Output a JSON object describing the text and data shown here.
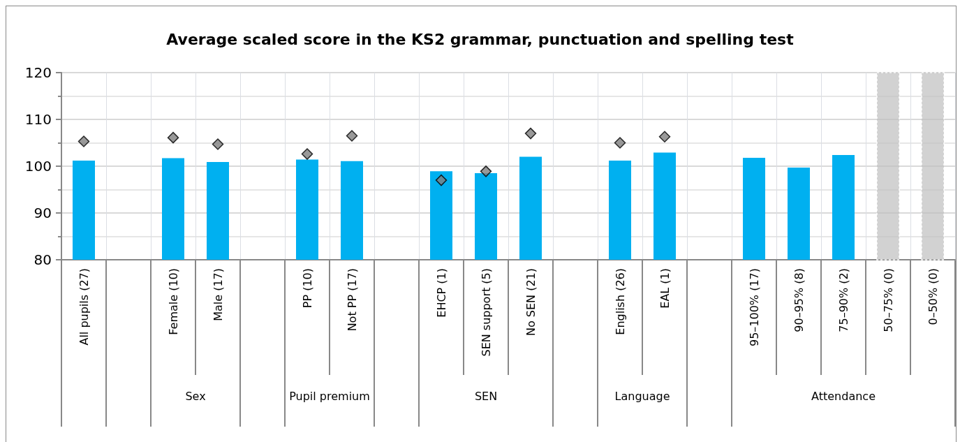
{
  "chart_data": {
    "type": "bar",
    "title": "Average scaled score in the KS2 grammar, punctuation and spelling test",
    "categories": [
      "All pupils (27)",
      null,
      "Female (10)",
      "Male (17)",
      null,
      "PP (10)",
      "Not PP (17)",
      null,
      "EHCP (1)",
      "SEN support (5)",
      "No SEN (21)",
      null,
      "English (26)",
      "EAL (1)",
      null,
      "95–100% (17)",
      "90–95% (8)",
      "75–90% (2)",
      "50–75% (0)",
      "0–50% (0)"
    ],
    "series": [
      {
        "color": "#00b0f0",
        "values": [
          101.2,
          null,
          101.7,
          100.9,
          null,
          101.4,
          101.1,
          null,
          98.9,
          98.5,
          102.0,
          null,
          101.2,
          102.9,
          null,
          101.8,
          99.7,
          102.4,
          null,
          null
        ]
      },
      {
        "type": "scatter",
        "color": "#808080",
        "marker": "diamond",
        "values": [
          105.3,
          null,
          106.1,
          104.7,
          null,
          102.6,
          106.5,
          null,
          97.0,
          98.9,
          107.0,
          null,
          105.0,
          106.3,
          null,
          null,
          null,
          null,
          null,
          null
        ]
      }
    ],
    "ylim": [
      80,
      120
    ],
    "yticks": [
      80,
      90,
      100,
      110,
      120
    ],
    "grid": true,
    "bands": [
      {
        "axis": "x",
        "from": "50–75% (0)",
        "to": "50–75% (0)",
        "color": "#bfbfbf"
      },
      {
        "axis": "x",
        "from": "0–50% (0)",
        "to": "0–50% (0)",
        "color": "#bfbfbf"
      }
    ],
    "annotations": [
      "Sex",
      "Pupil premium",
      "SEN",
      "Language",
      "Attendance"
    ]
  }
}
